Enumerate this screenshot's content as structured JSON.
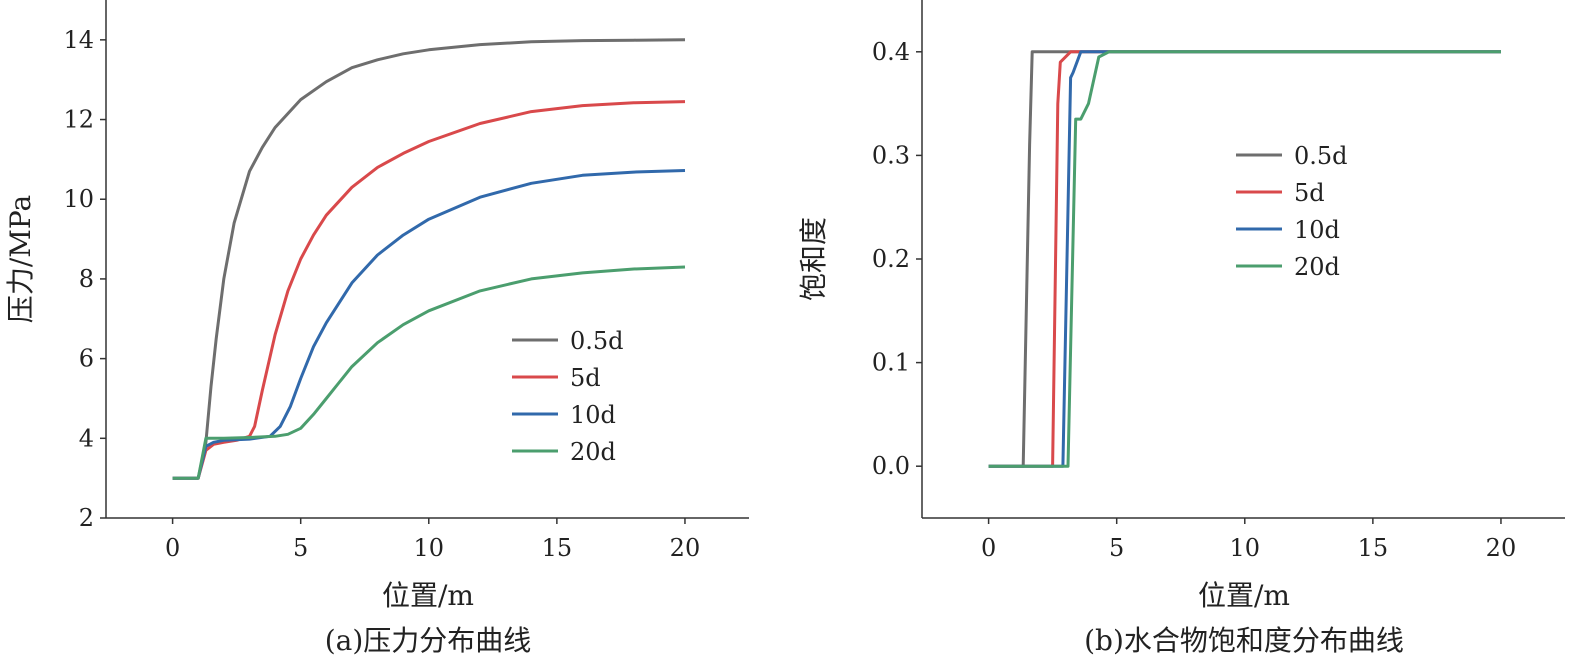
{
  "chart_data": [
    {
      "type": "line",
      "caption": "(a)压力分布曲线",
      "xlabel": "位置/m",
      "ylabel": "压力/MPa",
      "xlim": [
        -2.6,
        22.5
      ],
      "ylim": [
        2,
        15
      ],
      "xticks": [
        0,
        5,
        10,
        15,
        20
      ],
      "yticks": [
        2,
        4,
        6,
        8,
        10,
        12,
        14
      ],
      "xtick_labels": [
        "0",
        "5",
        "10",
        "15",
        "20"
      ],
      "ytick_labels": [
        "2",
        "4",
        "6",
        "8",
        "10",
        "12",
        "14"
      ],
      "legend_position": "center-right",
      "series": [
        {
          "name": "0.5d",
          "color": "#6e6e6e",
          "x": [
            0,
            1,
            1.3,
            1.5,
            1.7,
            2.0,
            2.4,
            3.0,
            3.5,
            4.0,
            5.0,
            6.0,
            7.0,
            8.0,
            9.0,
            10.0,
            12.0,
            14.0,
            16.0,
            18.0,
            20.0
          ],
          "y": [
            3.0,
            3.0,
            3.9,
            5.3,
            6.5,
            8.0,
            9.4,
            10.7,
            11.3,
            11.8,
            12.5,
            12.95,
            13.3,
            13.5,
            13.65,
            13.75,
            13.88,
            13.95,
            13.98,
            13.99,
            14.0
          ]
        },
        {
          "name": "5d",
          "color": "#d9494b",
          "x": [
            0,
            1,
            1.3,
            1.6,
            2.0,
            2.5,
            3.0,
            3.2,
            3.5,
            4.0,
            4.5,
            5.0,
            5.5,
            6.0,
            7.0,
            8.0,
            9.0,
            10.0,
            12.0,
            14.0,
            16.0,
            18.0,
            20.0
          ],
          "y": [
            3.0,
            3.0,
            3.7,
            3.85,
            3.9,
            3.95,
            4.05,
            4.3,
            5.2,
            6.6,
            7.7,
            8.5,
            9.1,
            9.6,
            10.3,
            10.8,
            11.15,
            11.45,
            11.9,
            12.2,
            12.35,
            12.42,
            12.45
          ]
        },
        {
          "name": "10d",
          "color": "#3169ab",
          "x": [
            0,
            1,
            1.3,
            1.6,
            2.0,
            3.0,
            3.8,
            4.2,
            4.6,
            5.0,
            5.5,
            6.0,
            7.0,
            8.0,
            9.0,
            10.0,
            12.0,
            14.0,
            16.0,
            18.0,
            20.0
          ],
          "y": [
            3.0,
            3.0,
            3.8,
            3.9,
            3.95,
            3.98,
            4.05,
            4.3,
            4.8,
            5.5,
            6.3,
            6.9,
            7.9,
            8.6,
            9.1,
            9.5,
            10.05,
            10.4,
            10.6,
            10.68,
            10.72
          ]
        },
        {
          "name": "20d",
          "color": "#4b9e6e",
          "x": [
            0,
            1,
            1.3,
            1.6,
            2.0,
            3.0,
            4.0,
            4.5,
            5.0,
            5.5,
            6.0,
            6.5,
            7.0,
            8.0,
            9.0,
            10.0,
            12.0,
            14.0,
            16.0,
            18.0,
            20.0
          ],
          "y": [
            3.0,
            3.0,
            4.0,
            4.0,
            4.0,
            4.02,
            4.05,
            4.1,
            4.25,
            4.6,
            5.0,
            5.4,
            5.8,
            6.4,
            6.85,
            7.2,
            7.7,
            8.0,
            8.15,
            8.25,
            8.3
          ]
        }
      ]
    },
    {
      "type": "line",
      "caption": "(b)水合物饱和度分布曲线",
      "xlabel": "位置/m",
      "ylabel": "饱和度",
      "xlim": [
        -2.6,
        22.5
      ],
      "ylim": [
        -0.05,
        0.45
      ],
      "xticks": [
        0,
        5,
        10,
        15,
        20
      ],
      "yticks": [
        0.0,
        0.1,
        0.2,
        0.3,
        0.4
      ],
      "xtick_labels": [
        "0",
        "5",
        "10",
        "15",
        "20"
      ],
      "ytick_labels": [
        "0.0",
        "0.1",
        "0.2",
        "0.3",
        "0.4"
      ],
      "legend_position": "upper-right",
      "series": [
        {
          "name": "0.5d",
          "color": "#6e6e6e",
          "x": [
            0,
            1.35,
            1.6,
            1.7,
            20
          ],
          "y": [
            0.0,
            0.0,
            0.31,
            0.4,
            0.4
          ]
        },
        {
          "name": "5d",
          "color": "#d9494b",
          "x": [
            0,
            2.5,
            2.7,
            2.8,
            3.2,
            20
          ],
          "y": [
            0.0,
            0.0,
            0.35,
            0.39,
            0.4,
            0.4
          ]
        },
        {
          "name": "10d",
          "color": "#3169ab",
          "x": [
            0,
            2.9,
            3.2,
            3.3,
            3.6,
            20
          ],
          "y": [
            0.0,
            0.0,
            0.375,
            0.38,
            0.4,
            0.4
          ]
        },
        {
          "name": "20d",
          "color": "#4b9e6e",
          "x": [
            0,
            3.1,
            3.4,
            3.6,
            3.9,
            4.3,
            4.7,
            5.0,
            20
          ],
          "y": [
            0.0,
            0.0,
            0.335,
            0.335,
            0.35,
            0.395,
            0.4,
            0.4,
            0.4
          ]
        }
      ]
    }
  ]
}
